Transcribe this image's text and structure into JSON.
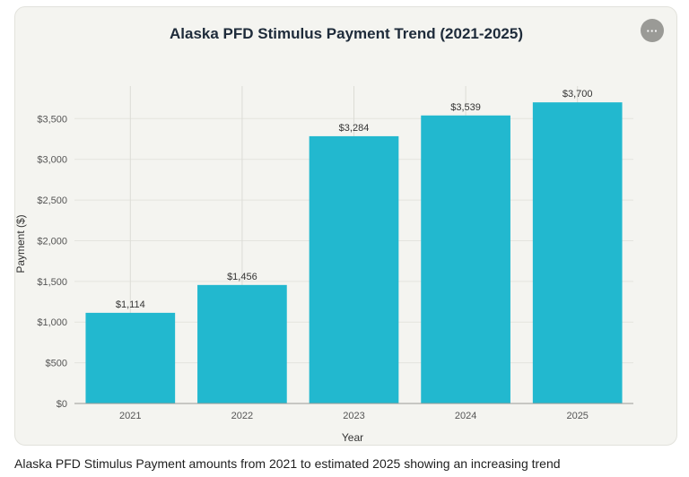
{
  "menu": {
    "icon": "more-horizontal-icon",
    "glyph": "···"
  },
  "chart_data": {
    "type": "bar",
    "title": "Alaska PFD Stimulus Payment Trend (2021-2025)",
    "xlabel": "Year",
    "ylabel": "Payment ($)",
    "categories": [
      "2021",
      "2022",
      "2023",
      "2024",
      "2025"
    ],
    "values": [
      1114,
      1456,
      3284,
      3539,
      3700
    ],
    "data_labels": [
      "$1,114",
      "$1,456",
      "$3,284",
      "$3,539",
      "$3,700"
    ],
    "yticks": [
      0,
      500,
      1000,
      1500,
      2000,
      2500,
      3000,
      3500
    ],
    "ytick_labels": [
      "$0",
      "$500",
      "$1,000",
      "$1,500",
      "$2,000",
      "$2,500",
      "$3,000",
      "$3,500"
    ],
    "ylim": [
      0,
      3900
    ],
    "grid": true,
    "bar_color": "#22b8cf"
  },
  "caption": "Alaska PFD Stimulus Payment amounts from 2021 to estimated 2025 showing an increasing trend"
}
